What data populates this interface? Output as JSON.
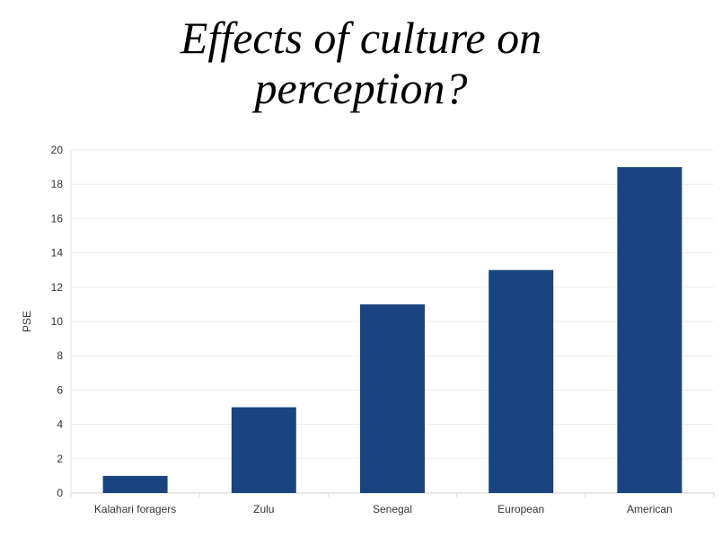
{
  "title_line1": "Effects of culture on",
  "title_line2": "perception?",
  "chart_data": {
    "type": "bar",
    "title": "Effects of culture on perception?",
    "xlabel": "",
    "ylabel": "PSE",
    "categories": [
      "Kalahari foragers",
      "Zulu",
      "Senegal",
      "European",
      "American"
    ],
    "values": [
      1,
      5,
      11,
      13,
      19
    ],
    "ylim": [
      0,
      20
    ],
    "yticks": [
      0,
      2,
      4,
      6,
      8,
      10,
      12,
      14,
      16,
      18,
      20
    ],
    "grid": true,
    "legend": "none",
    "bar_color": "#1a4480"
  }
}
